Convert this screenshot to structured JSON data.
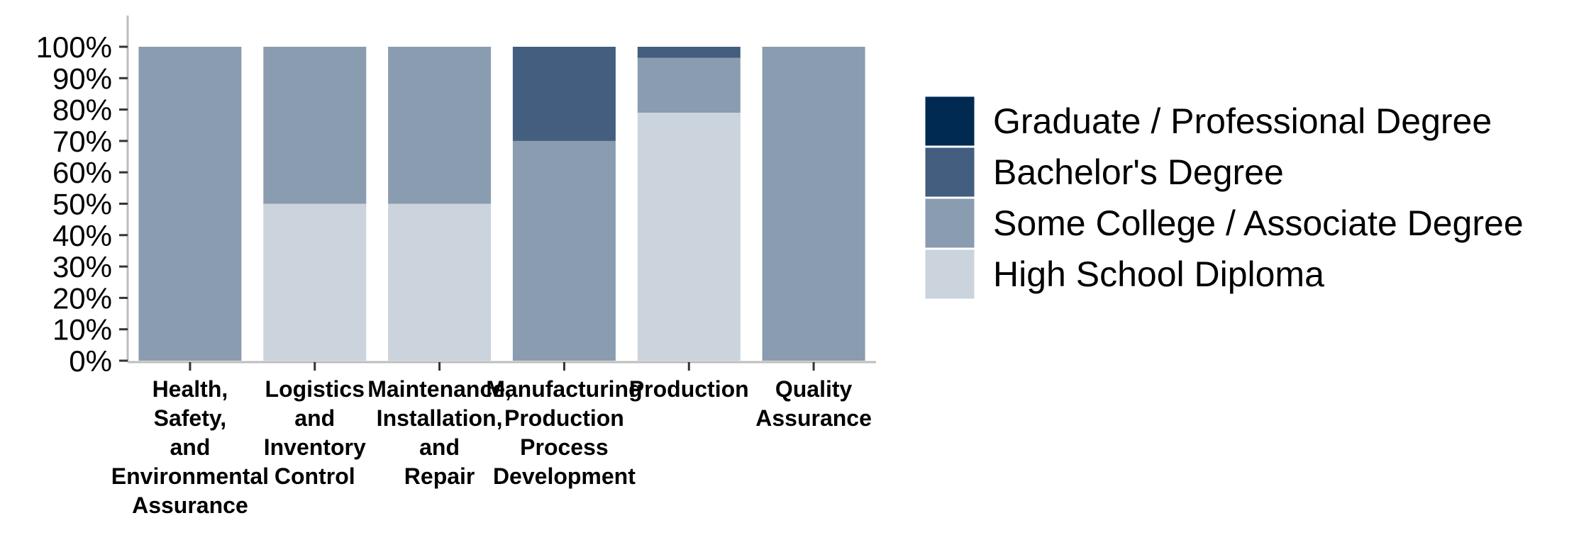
{
  "chart_data": {
    "type": "bar",
    "stacked": true,
    "percent": true,
    "title": "",
    "xlabel": "",
    "ylabel": "",
    "ylim": [
      0,
      100
    ],
    "yticks": [
      0,
      10,
      20,
      30,
      40,
      50,
      60,
      70,
      80,
      90,
      100
    ],
    "ytick_labels": [
      "0%",
      "10%",
      "20%",
      "30%",
      "40%",
      "50%",
      "60%",
      "70%",
      "80%",
      "90%",
      "100%"
    ],
    "grid": false,
    "legend_position": "right",
    "categories": [
      [
        "Health,",
        "Safety,",
        "and",
        "Environmental",
        "Assurance"
      ],
      [
        "Logistics",
        "and",
        "Inventory",
        "Control"
      ],
      [
        "Maintenance,",
        "Installation,",
        "and",
        "Repair"
      ],
      [
        "Manufacturing",
        "Production",
        "Process",
        "Development"
      ],
      [
        "Production"
      ],
      [
        "Quality",
        "Assurance"
      ]
    ],
    "series": [
      {
        "name": "High School Diploma",
        "color": "#cbd3dc",
        "values": [
          0,
          50,
          50,
          0,
          79,
          0
        ]
      },
      {
        "name": "Some College / Associate Degree",
        "color": "#8a9caf",
        "values": [
          100,
          50,
          50,
          70,
          17.5,
          100
        ]
      },
      {
        "name": "Bachelor's Degree",
        "color": "#435e7e",
        "values": [
          0,
          0,
          0,
          30,
          3.5,
          0
        ]
      },
      {
        "name": "Graduate / Professional Degree",
        "color": "#012a52",
        "values": [
          0,
          0,
          0,
          0,
          0,
          0
        ]
      }
    ],
    "legend_order": [
      3,
      2,
      1,
      0
    ]
  }
}
